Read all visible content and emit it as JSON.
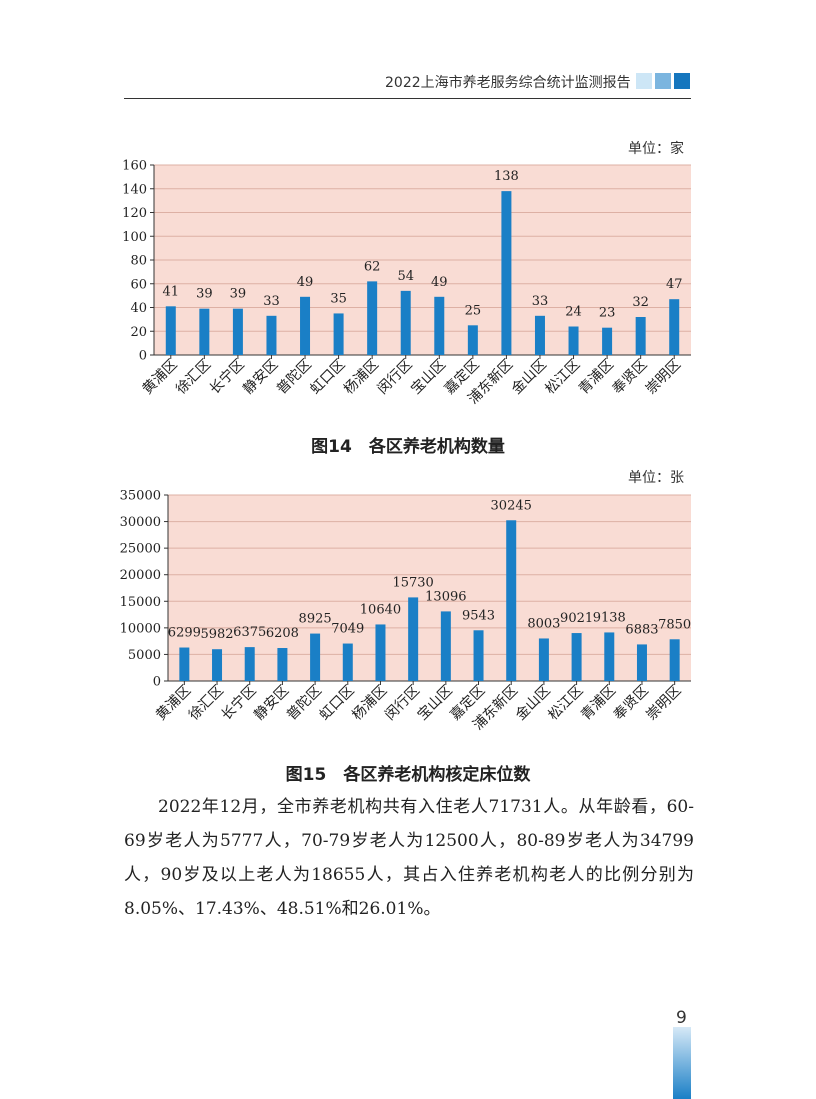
{
  "header": {
    "title": "2022上海市养老服务综合统计监测报告",
    "square_colors": [
      "#cde6f6",
      "#7bb5df",
      "#1576be"
    ]
  },
  "colors": {
    "bar": "#1a7fc6",
    "plot_bg": "#f9dcd4",
    "gridline": "#ddb0a4",
    "page_bar": "#1a7fc6"
  },
  "chart_data": [
    {
      "type": "bar",
      "unit": "单位：家",
      "caption": "图14　各区养老机构数量",
      "categories": [
        "黄浦区",
        "徐汇区",
        "长宁区",
        "静安区",
        "普陀区",
        "虹口区",
        "杨浦区",
        "闵行区",
        "宝山区",
        "嘉定区",
        "浦东新区",
        "金山区",
        "松江区",
        "青浦区",
        "奉贤区",
        "崇明区"
      ],
      "values": [
        41,
        39,
        39,
        33,
        49,
        35,
        62,
        54,
        49,
        25,
        138,
        33,
        24,
        23,
        32,
        47
      ],
      "ylim": [
        0,
        160
      ],
      "yticks": [
        0,
        20,
        40,
        60,
        80,
        100,
        120,
        140,
        160
      ],
      "grid": true,
      "data_labels": true
    },
    {
      "type": "bar",
      "unit": "单位：张",
      "caption": "图15　各区养老机构核定床位数",
      "categories": [
        "黄浦区",
        "徐汇区",
        "长宁区",
        "静安区",
        "普陀区",
        "虹口区",
        "杨浦区",
        "闵行区",
        "宝山区",
        "嘉定区",
        "浦东新区",
        "金山区",
        "松江区",
        "青浦区",
        "奉贤区",
        "崇明区"
      ],
      "values": [
        6299,
        5982,
        6375,
        6208,
        8925,
        7049,
        10640,
        15730,
        13096,
        9543,
        30245,
        8003,
        9021,
        9138,
        6883,
        7850
      ],
      "ylim": [
        0,
        35000
      ],
      "yticks": [
        0,
        5000,
        10000,
        15000,
        20000,
        25000,
        30000,
        35000
      ],
      "grid": true,
      "data_labels": true
    }
  ],
  "body_text": "2022年12月，全市养老机构共有入住老人71731人。从年龄看，60-69岁老人为5777人，70-79岁老人为12500人，80-89岁老人为34799人，90岁及以上老人为18655人，其占入住养老机构老人的比例分别为8.05%、17.43%、48.51%和26.01%。",
  "page_number": "9"
}
